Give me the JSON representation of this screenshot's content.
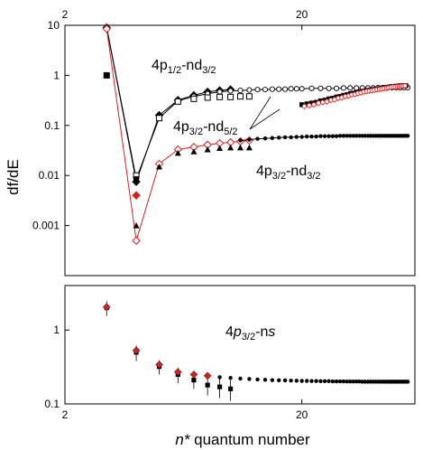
{
  "chart_data": [
    {
      "type": "scatter",
      "panel": "top",
      "x_scale": "log",
      "y_scale": "log",
      "xlim": [
        2,
        60
      ],
      "ylim": [
        0.0001,
        10
      ],
      "x_ticks": [
        {
          "value": 2,
          "label": "2"
        },
        {
          "value": 20,
          "label": "20"
        }
      ],
      "y_ticks": [
        {
          "value": 10,
          "label": "10"
        },
        {
          "value": 1,
          "label": "1"
        },
        {
          "value": 0.1,
          "label": "0.1"
        },
        {
          "value": 0.01,
          "label": "0.01"
        },
        {
          "value": 0.001,
          "label": "0.001"
        }
      ],
      "ylabel": "df/dE",
      "annotations": [
        {
          "main": "4p",
          "sub": "1/2",
          "rest": "-nd",
          "sub2": "3/2"
        },
        {
          "main": "4p",
          "sub": "3/2",
          "rest": "-nd",
          "sub2": "5/2"
        },
        {
          "main": "4p",
          "sub": "3/2",
          "rest": "-nd",
          "sub2": "3/2"
        }
      ],
      "series": [
        {
          "marker": "filled-diamond",
          "color": "#000000",
          "line": true,
          "x": [
            3,
            4,
            5,
            6,
            7,
            8,
            9,
            10
          ],
          "y": [
            9.0,
            0.0075,
            0.16,
            0.32,
            0.4,
            0.47,
            0.5,
            0.52
          ]
        },
        {
          "marker": "open-circle",
          "color": "#000000",
          "line": true,
          "x": [
            3,
            4,
            5,
            6,
            7,
            8,
            9,
            10,
            11,
            12,
            13,
            14,
            15,
            16,
            17,
            18,
            19,
            20,
            22,
            24,
            26,
            28,
            30,
            32,
            34,
            36,
            38,
            40,
            42,
            44,
            46,
            48,
            50,
            52,
            54,
            56
          ],
          "y": [
            9.0,
            0.0085,
            0.14,
            0.31,
            0.38,
            0.43,
            0.47,
            0.49,
            0.5,
            0.51,
            0.52,
            0.52,
            0.53,
            0.53,
            0.53,
            0.54,
            0.54,
            0.54,
            0.55,
            0.55,
            0.55,
            0.55,
            0.56,
            0.56,
            0.56,
            0.56,
            0.56,
            0.56,
            0.57,
            0.57,
            0.57,
            0.57,
            0.57,
            0.57,
            0.57,
            0.57
          ]
        },
        {
          "marker": "open-square",
          "color": "#000000",
          "line": false,
          "x": [
            3,
            4,
            5,
            6,
            7,
            8,
            9,
            10,
            11,
            12
          ],
          "y": [
            1.0,
            0.01,
            0.14,
            0.3,
            0.34,
            0.36,
            0.37,
            0.37,
            0.38,
            0.38
          ]
        },
        {
          "marker": "filled-square",
          "color": "#000000",
          "line": false,
          "x": [
            3,
            4
          ],
          "y": [
            1.0,
            0.0085
          ]
        },
        {
          "marker": "open-diamond",
          "color": "#d42020",
          "line": true,
          "x": [
            3,
            4,
            5,
            6,
            7,
            8,
            9,
            10,
            11,
            12
          ],
          "y": [
            8.5,
            0.0005,
            0.017,
            0.033,
            0.037,
            0.041,
            0.044,
            0.046,
            0.048,
            0.05
          ]
        },
        {
          "marker": "filled-diamond",
          "color": "#d42020",
          "line": false,
          "x": [
            4
          ],
          "y": [
            0.004
          ]
        },
        {
          "marker": "filled-triangle",
          "color": "#000000",
          "line": false,
          "x": [
            3,
            4,
            5,
            6,
            7,
            8,
            9,
            10,
            11,
            12
          ],
          "y": [
            1.0,
            0.001,
            0.015,
            0.028,
            0.03,
            0.033,
            0.035,
            0.036,
            0.036,
            0.036
          ]
        },
        {
          "marker": "small-dot",
          "color": "#000000",
          "line": true,
          "x": [
            11,
            12,
            13,
            14,
            15,
            16,
            17,
            18,
            19,
            20,
            21,
            22,
            23,
            24,
            25,
            26,
            27,
            28,
            29,
            30,
            31,
            32,
            33,
            34,
            35,
            36,
            37,
            38,
            39,
            40,
            41,
            42,
            43,
            44,
            45,
            46,
            47,
            48,
            49,
            50,
            51,
            52,
            53,
            54,
            55,
            56
          ],
          "y": [
            0.05,
            0.052,
            0.054,
            0.055,
            0.056,
            0.057,
            0.058,
            0.058,
            0.059,
            0.059,
            0.06,
            0.06,
            0.06,
            0.061,
            0.061,
            0.061,
            0.061,
            0.061,
            0.062,
            0.062,
            0.062,
            0.062,
            0.062,
            0.062,
            0.062,
            0.062,
            0.062,
            0.062,
            0.062,
            0.062,
            0.062,
            0.062,
            0.062,
            0.062,
            0.062,
            0.062,
            0.062,
            0.062,
            0.062,
            0.062,
            0.062,
            0.062,
            0.062,
            0.062,
            0.062,
            0.062
          ]
        },
        {
          "marker": "filled-square-errorbar",
          "color": "#000000",
          "line": false,
          "x": [
            20,
            21,
            22,
            23,
            24,
            25,
            26,
            27,
            28,
            29,
            30,
            31,
            32,
            33,
            34,
            35,
            36,
            37,
            38,
            39,
            40,
            41,
            42,
            43,
            44,
            45,
            46,
            47,
            48,
            49,
            50,
            51,
            52,
            53,
            54,
            55
          ],
          "y": [
            0.26,
            0.27,
            0.28,
            0.29,
            0.31,
            0.32,
            0.34,
            0.35,
            0.37,
            0.38,
            0.4,
            0.41,
            0.43,
            0.44,
            0.46,
            0.47,
            0.48,
            0.49,
            0.5,
            0.51,
            0.52,
            0.53,
            0.54,
            0.55,
            0.56,
            0.57,
            0.58,
            0.59,
            0.6,
            0.6,
            0.61,
            0.61,
            0.62,
            0.62,
            0.62,
            0.62
          ]
        },
        {
          "marker": "red-circle-errorbar",
          "color": "#d42020",
          "line": false,
          "x": [
            20.5,
            21.5,
            22.5,
            23.5,
            24.5,
            25.5,
            26.5,
            27.5,
            28.5,
            29.5,
            30.5,
            31.5,
            32.5,
            33.5,
            34.5,
            35.5,
            36.5,
            37.5,
            38.5,
            39.5,
            40.5,
            41.5,
            42.5,
            43.5,
            44.5,
            45.5,
            46.5,
            47.5,
            48.5,
            49.5,
            50.5,
            51.5,
            52.5,
            53.5,
            54.5
          ],
          "y": [
            0.24,
            0.25,
            0.26,
            0.28,
            0.29,
            0.3,
            0.32,
            0.33,
            0.35,
            0.36,
            0.38,
            0.39,
            0.41,
            0.42,
            0.44,
            0.45,
            0.47,
            0.48,
            0.49,
            0.5,
            0.51,
            0.52,
            0.53,
            0.54,
            0.55,
            0.56,
            0.57,
            0.58,
            0.59,
            0.59,
            0.6,
            0.6,
            0.61,
            0.61,
            0.62
          ]
        }
      ]
    },
    {
      "type": "scatter",
      "panel": "bottom",
      "x_scale": "log",
      "y_scale": "log",
      "xlim": [
        2,
        60
      ],
      "ylim": [
        0.1,
        4
      ],
      "x_ticks": [
        {
          "value": 2,
          "label": "2"
        },
        {
          "value": 20,
          "label": "20"
        }
      ],
      "y_ticks": [
        {
          "value": 1,
          "label": "1"
        },
        {
          "value": 0.1,
          "label": "0.1"
        }
      ],
      "xlabel": {
        "italic": "n*",
        "plain": " quantum number"
      },
      "annotations": [
        {
          "main": "4",
          "italic": "p",
          "sub": "3/2",
          "rest": "-n",
          "italic2": "s"
        }
      ],
      "series": [
        {
          "marker": "filled-square-errorbar",
          "color": "#000000",
          "line": false,
          "x": [
            3,
            4,
            5,
            6,
            7,
            8,
            9,
            10
          ],
          "y": [
            2.0,
            0.5,
            0.32,
            0.25,
            0.21,
            0.18,
            0.17,
            0.16
          ],
          "err": [
            0.45,
            0.12,
            0.07,
            0.06,
            0.05,
            0.05,
            0.05,
            0.05
          ]
        },
        {
          "marker": "red-diamond",
          "color": "#d42020",
          "line": false,
          "x": [
            3,
            4,
            5,
            6,
            7,
            8
          ],
          "y": [
            2.05,
            0.53,
            0.34,
            0.27,
            0.25,
            0.24
          ]
        },
        {
          "marker": "small-dot",
          "color": "#000000",
          "line": false,
          "x": [
            9,
            10,
            11,
            12,
            13,
            14,
            15,
            16,
            17,
            18,
            19,
            20,
            21,
            22,
            23,
            24,
            25,
            26,
            27,
            28,
            29,
            30,
            31,
            32,
            33,
            34,
            35,
            36,
            37,
            38,
            39,
            40,
            41,
            42,
            43,
            44,
            45,
            46,
            47,
            48,
            49,
            50,
            51,
            52,
            53,
            54,
            55,
            56
          ],
          "y": [
            0.23,
            0.225,
            0.22,
            0.217,
            0.214,
            0.212,
            0.21,
            0.209,
            0.208,
            0.207,
            0.206,
            0.205,
            0.205,
            0.204,
            0.204,
            0.203,
            0.203,
            0.203,
            0.202,
            0.202,
            0.202,
            0.202,
            0.201,
            0.201,
            0.201,
            0.201,
            0.201,
            0.2,
            0.2,
            0.2,
            0.2,
            0.2,
            0.2,
            0.2,
            0.2,
            0.2,
            0.2,
            0.2,
            0.2,
            0.2,
            0.2,
            0.2,
            0.2,
            0.2,
            0.2,
            0.2,
            0.2,
            0.2
          ]
        }
      ]
    }
  ]
}
